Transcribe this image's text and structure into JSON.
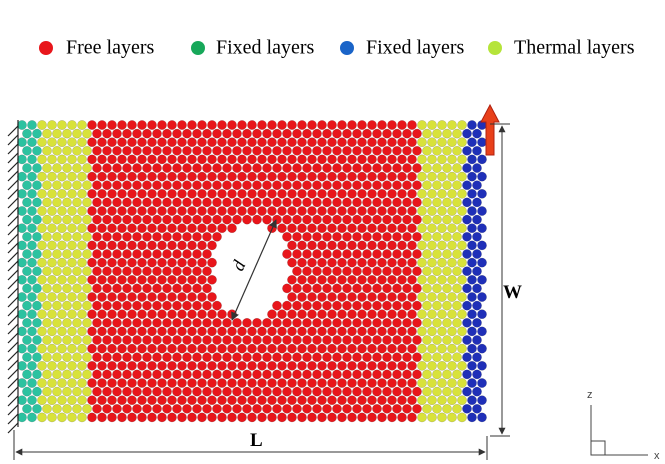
{
  "legend": {
    "items": [
      {
        "label": "Free layers",
        "color": "#e8161b"
      },
      {
        "label": "Fixed layers",
        "color": "#17a85a"
      },
      {
        "label": "Fixed layers",
        "color": "#1a64c8"
      },
      {
        "label": "Thermal layers",
        "color": "#b5e43a"
      }
    ]
  },
  "labels": {
    "hole_diameter": "d",
    "width": "W",
    "length": "L"
  },
  "axes": {
    "vertical": "z",
    "horizontal": "x"
  }
}
